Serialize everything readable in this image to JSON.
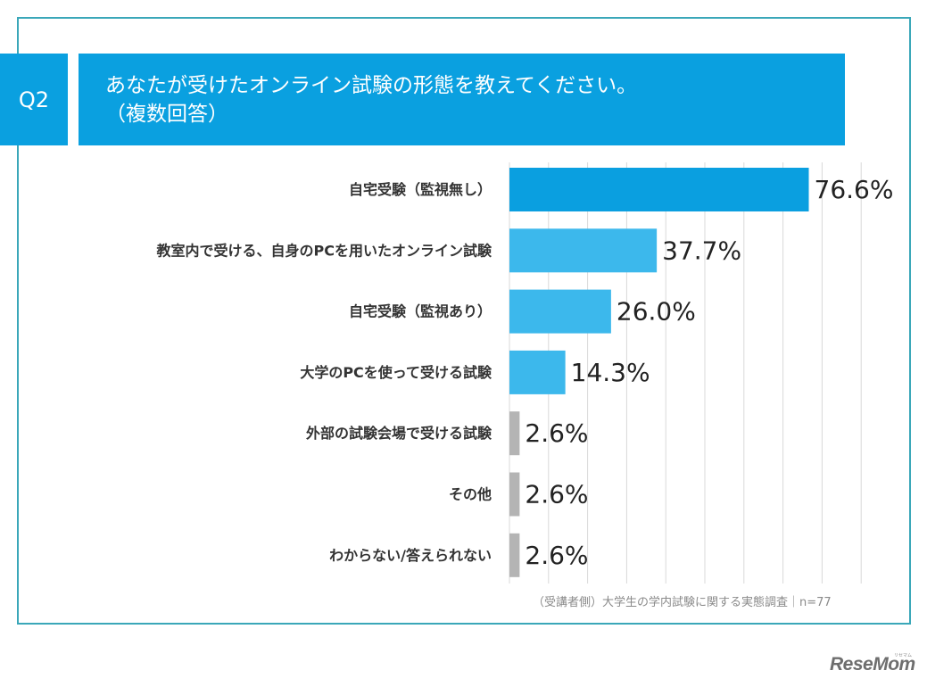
{
  "header": {
    "question_label": "Q2",
    "title_line1": "あなたが受けたオンライン試験の形態を教えてください。",
    "title_line2": "（複数回答）"
  },
  "chart_data": {
    "type": "bar",
    "orientation": "horizontal",
    "categories": [
      "自宅受験（監視無し）",
      "教室内で受ける、自身のPCを用いたオンライン試験",
      "自宅受験（監視あり）",
      "大学のPCを使って受ける試験",
      "外部の試験会場で受ける試験",
      "その他",
      "わからない/答えられない"
    ],
    "values": [
      76.6,
      37.7,
      26.0,
      14.3,
      2.6,
      2.6,
      2.6
    ],
    "value_labels": [
      "76.6%",
      "37.7%",
      "26.0%",
      "14.3%",
      "2.6%",
      "2.6%",
      "2.6%"
    ],
    "bar_colors": [
      "#0a9fe0",
      "#3cb8ec",
      "#3cb8ec",
      "#3cb8ec",
      "#b4b4b4",
      "#b4b4b4",
      "#b4b4b4"
    ],
    "xlim": [
      0,
      100
    ],
    "grid": true
  },
  "source": "（受講者側）大学生の学内試験に関する実態調査｜n=77",
  "logo": {
    "text": "ReseMom",
    "small_text": "リセマム"
  }
}
